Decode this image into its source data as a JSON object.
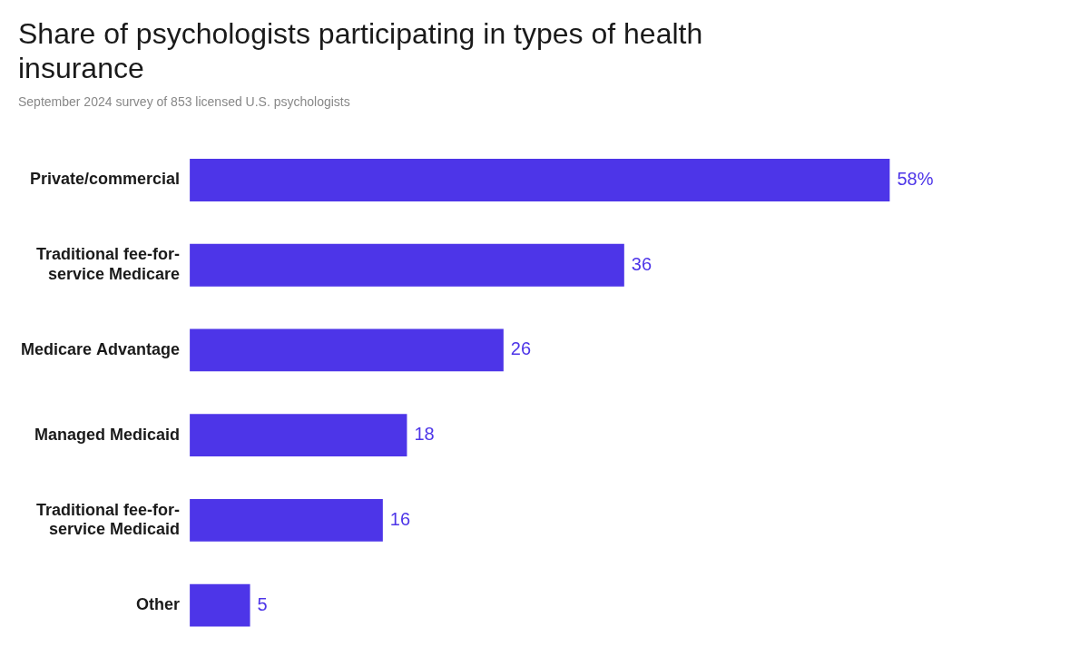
{
  "chart_data": {
    "type": "bar",
    "orientation": "horizontal",
    "title": "Share of psychologists participating in types of health\ninsurance",
    "subtitle": "September 2024 survey of 853 licensed U.S. psychologists",
    "categories": [
      "Private/commercial",
      "Traditional fee-for-\nservice Medicare",
      "Medicare Advantage",
      "Managed Medicaid",
      "Traditional fee-for-\nservice Medicaid",
      "Other"
    ],
    "values": [
      58,
      36,
      26,
      18,
      16,
      5
    ],
    "value_labels": [
      "58%",
      "36",
      "26",
      "18",
      "16",
      "5"
    ],
    "data_labels": true,
    "color": "#4d35e8",
    "xlim": [
      0,
      70
    ],
    "tick_labels": "y",
    "grid": false
  }
}
